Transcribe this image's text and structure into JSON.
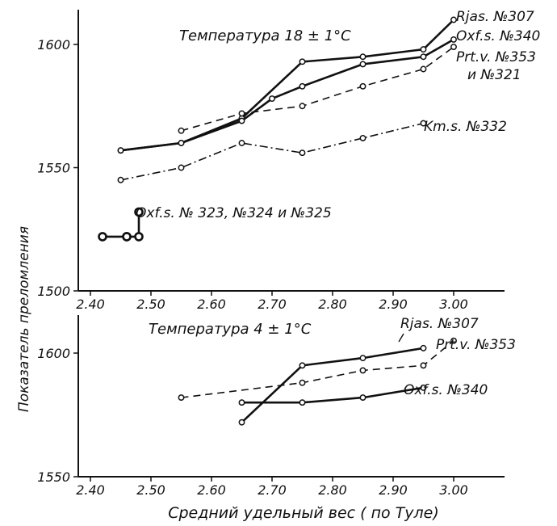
{
  "chart_data": [
    {
      "type": "line",
      "title": "Температура 18 ± 1°C",
      "xlabel": "",
      "ylabel": "Показатель преломления",
      "xlim": [
        2.4,
        3.05
      ],
      "ylim": [
        1500,
        1620
      ],
      "xticks": [
        "2.40",
        "2.50",
        "2.60",
        "2.70",
        "2.80",
        "2.90",
        "3.00"
      ],
      "yticks": [
        "1500",
        "1550",
        "1600"
      ],
      "series": [
        {
          "name": "Rjas. №307",
          "style": "solid-thick",
          "x": [
            2.45,
            2.55,
            2.65,
            2.75,
            2.85,
            2.95,
            3.0
          ],
          "y": [
            1557,
            1560,
            1570,
            1593,
            1595,
            1598,
            1610
          ]
        },
        {
          "name": "Oxf.s. №340",
          "style": "solid-thick",
          "x": [
            2.45,
            2.55,
            2.65,
            2.7,
            2.75,
            2.85,
            2.95,
            3.0
          ],
          "y": [
            1557,
            1560,
            1569,
            1578,
            1583,
            1592,
            1595,
            1602
          ]
        },
        {
          "name": "Prt.v. №353 и №321",
          "style": "dashed",
          "x": [
            2.55,
            2.65,
            2.75,
            2.85,
            2.95,
            3.0
          ],
          "y": [
            1565,
            1572,
            1575,
            1583,
            1590,
            1599
          ]
        },
        {
          "name": "Km.s. №332",
          "style": "dash-dot",
          "x": [
            2.45,
            2.55,
            2.65,
            2.75,
            2.85,
            2.95
          ],
          "y": [
            1545,
            1550,
            1560,
            1556,
            1562,
            1568
          ]
        },
        {
          "name": "Oxf.s. № 323, №324 и №325",
          "style": "solid-thick",
          "x": [
            2.42,
            2.46,
            2.46,
            2.48,
            2.48
          ],
          "y": [
            1522,
            1522,
            1522,
            1522,
            1532
          ]
        }
      ]
    },
    {
      "type": "line",
      "title": "Температура 4 ± 1°C",
      "xlabel": "Средний удельный вес ( по Туле)",
      "ylabel": "Показатель преломления",
      "xlim": [
        2.4,
        3.05
      ],
      "ylim": [
        1550,
        1615
      ],
      "xticks": [
        "2.40",
        "2.50",
        "2.60",
        "2.70",
        "2.80",
        "2.90",
        "3.00"
      ],
      "yticks": [
        "1550",
        "1600"
      ],
      "series": [
        {
          "name": "Rjas. №307",
          "style": "solid-thick",
          "x": [
            2.65,
            2.75,
            2.85,
            2.95
          ],
          "y": [
            1572,
            1595,
            1598,
            1602
          ]
        },
        {
          "name": "Prt.v. №353",
          "style": "dashed",
          "x": [
            2.55,
            2.75,
            2.85,
            2.95,
            3.0
          ],
          "y": [
            1582,
            1588,
            1593,
            1595,
            1605
          ]
        },
        {
          "name": "Oxf.s. №340",
          "style": "solid-thick",
          "x": [
            2.65,
            2.75,
            2.85,
            2.95
          ],
          "y": [
            1580,
            1580,
            1582,
            1586
          ]
        }
      ]
    }
  ]
}
